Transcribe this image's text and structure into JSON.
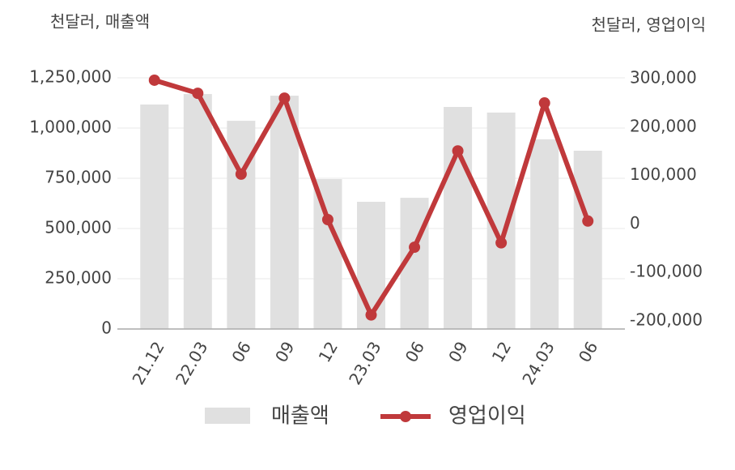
{
  "chart_data": {
    "type": "bar_line",
    "y_label": "천달러, 매출액",
    "y2_label": "천달러, 영업이익",
    "categories": [
      "21.12",
      "22.03",
      "06",
      "09",
      "12",
      "23.03",
      "06",
      "09",
      "12",
      "24.03",
      "06"
    ],
    "series": [
      {
        "name": "매출액",
        "type": "bar",
        "color": "#e0e0e0",
        "values": [
          1117000,
          1169000,
          1036000,
          1161000,
          746000,
          633000,
          653000,
          1105000,
          1077000,
          944000,
          887000
        ]
      },
      {
        "name": "영업이익",
        "type": "line",
        "axis": "y2",
        "color": "#c0393b",
        "values": [
          297000,
          270000,
          103000,
          260000,
          9000,
          -188000,
          -48000,
          151000,
          -39000,
          250000,
          6000
        ]
      }
    ],
    "ylim": [
      0,
      1250000
    ],
    "yticks": [
      0,
      {
        "value": 250000,
        "label": "250,000"
      },
      {
        "value": 500000,
        "label": "500,000"
      },
      {
        "value": 750000,
        "label": "750,000"
      },
      {
        "value": 1000000,
        "label": "1,000,000"
      },
      {
        "value": 1250000,
        "label": "1,250,000"
      }
    ],
    "y2lim": [
      -217000,
      302000
    ],
    "y2ticks": [
      {
        "value": -200000,
        "label": "-200,000"
      },
      {
        "value": -100000,
        "label": "-100,000"
      },
      0,
      {
        "value": 100000,
        "label": "100,000"
      },
      {
        "value": 200000,
        "label": "200,000"
      },
      {
        "value": 300000,
        "label": "300,000"
      }
    ],
    "grid": true
  }
}
